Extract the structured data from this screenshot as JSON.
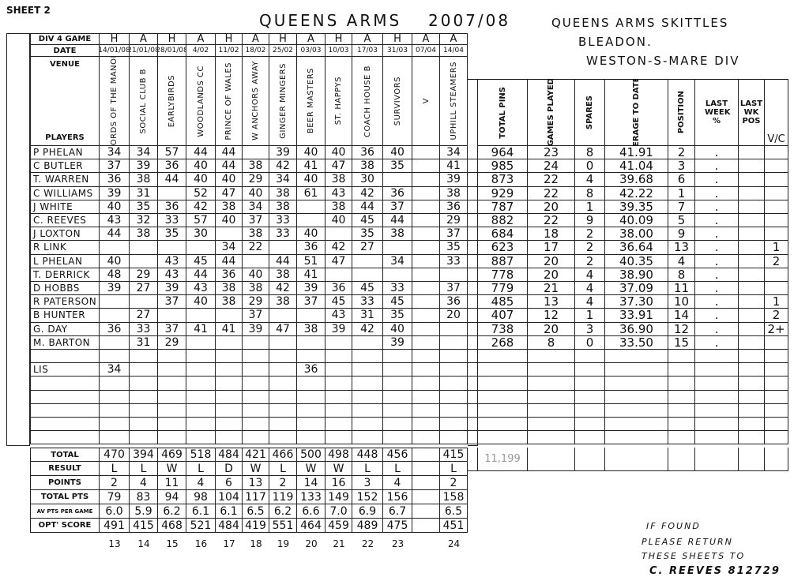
{
  "sheet_label": "SHEET 2",
  "title": "QUEENS ARMS",
  "season": "2007/08",
  "club": {
    "line1": "QUEENS ARMS SKITTLES",
    "line2": "BLEADON.",
    "line3": "WESTON-S-MARE DIV"
  },
  "left_header": {
    "div_label": "DIV 4 GAME",
    "date_label": "DATE",
    "venue_label": "VENUE",
    "players_label": "PLAYERS"
  },
  "matches": [
    {
      "ha": "H",
      "date": "14/01/08",
      "venue": "LORDS OF THE MANOR"
    },
    {
      "ha": "A",
      "date": "21/01/08",
      "venue": "SOCIAL CLUB B"
    },
    {
      "ha": "H",
      "date": "28/01/08",
      "venue": "EARLYBIRDS"
    },
    {
      "ha": "A",
      "date": "4/02",
      "venue": "WOODLANDS CC"
    },
    {
      "ha": "H",
      "date": "11/02",
      "venue": "PRINCE OF WALES"
    },
    {
      "ha": "A",
      "date": "18/02",
      "venue": "W ANCHORS AWAY"
    },
    {
      "ha": "H",
      "date": "25/02",
      "venue": "GINGER MINGERS"
    },
    {
      "ha": "A",
      "date": "03/03",
      "venue": "BEER MASTERS"
    },
    {
      "ha": "H",
      "date": "10/03",
      "venue": "ST. HAPPYS"
    },
    {
      "ha": "A",
      "date": "17/03",
      "venue": "COACH HOUSE B"
    },
    {
      "ha": "H",
      "date": "31/03",
      "venue": "SURVIVORS"
    },
    {
      "ha": "A",
      "date": "07/04",
      "venue": "V"
    },
    {
      "ha": "A",
      "date": "14/04",
      "venue": "UPHILL STEAMERS"
    }
  ],
  "stats_headers": {
    "total_pins": "TOTAL PINS",
    "games_played": "GAMES PLAYED",
    "spares": "SPARES",
    "average": "AVERAGE TO DATE %",
    "position": "POSITION",
    "last_week": "LAST WEEK %",
    "last_wk_pos": "LAST WK POS",
    "vc": "V/C"
  },
  "players": [
    {
      "name": "P PHELAN",
      "scores": [
        "34",
        "34",
        "57",
        "44",
        "44",
        "",
        "39",
        "40",
        "40",
        "36",
        "40",
        "",
        "34"
      ],
      "total_pins": "964",
      "games": "23",
      "spares": "8",
      "average": "41.91",
      "position": "2",
      "last_week": ".",
      "vc": ""
    },
    {
      "name": "C BUTLER",
      "scores": [
        "37",
        "39",
        "36",
        "40",
        "44",
        "38",
        "42",
        "41",
        "47",
        "38",
        "35",
        "",
        "41"
      ],
      "total_pins": "985",
      "games": "24",
      "spares": "0",
      "average": "41.04",
      "position": "3",
      "last_week": ".",
      "vc": ""
    },
    {
      "name": "T. WARREN",
      "scores": [
        "36",
        "38",
        "44",
        "40",
        "40",
        "29",
        "34",
        "40",
        "38",
        "30",
        "",
        "",
        "39"
      ],
      "total_pins": "873",
      "games": "22",
      "spares": "4",
      "average": "39.68",
      "position": "6",
      "last_week": ".",
      "vc": ""
    },
    {
      "name": "C WILLIAMS",
      "scores": [
        "39",
        "31",
        "",
        "52",
        "47",
        "40",
        "38",
        "61",
        "43",
        "42",
        "36",
        "",
        "38"
      ],
      "total_pins": "929",
      "games": "22",
      "spares": "8",
      "average": "42.22",
      "position": "1",
      "last_week": ".",
      "vc": ""
    },
    {
      "name": "J WHITE",
      "scores": [
        "40",
        "35",
        "36",
        "42",
        "38",
        "34",
        "38",
        "",
        "38",
        "44",
        "37",
        "",
        "36"
      ],
      "total_pins": "787",
      "games": "20",
      "spares": "1",
      "average": "39.35",
      "position": "7",
      "last_week": ".",
      "vc": ""
    },
    {
      "name": "C. REEVES",
      "scores": [
        "43",
        "32",
        "33",
        "57",
        "40",
        "37",
        "33",
        "",
        "40",
        "45",
        "44",
        "",
        "29"
      ],
      "total_pins": "882",
      "games": "22",
      "spares": "9",
      "average": "40.09",
      "position": "5",
      "last_week": ".",
      "vc": ""
    },
    {
      "name": "J LOXTON",
      "scores": [
        "44",
        "38",
        "35",
        "30",
        "",
        "38",
        "33",
        "40",
        "",
        "35",
        "38",
        "",
        "37"
      ],
      "total_pins": "684",
      "games": "18",
      "spares": "2",
      "average": "38.00",
      "position": "9",
      "last_week": ".",
      "vc": ""
    },
    {
      "name": "R LINK",
      "scores": [
        "",
        "",
        "",
        "",
        "34",
        "22",
        "",
        "36",
        "42",
        "27",
        "",
        "",
        "35"
      ],
      "total_pins": "623",
      "games": "17",
      "spares": "2",
      "average": "36.64",
      "position": "13",
      "last_week": ".",
      "vc": "1"
    },
    {
      "name": "L PHELAN",
      "scores": [
        "40",
        "",
        "43",
        "45",
        "44",
        "",
        "44",
        "51",
        "47",
        "",
        "34",
        "",
        "33"
      ],
      "total_pins": "887",
      "games": "20",
      "spares": "2",
      "average": "40.35",
      "position": "4",
      "last_week": ".",
      "vc": "2"
    },
    {
      "name": "T. DERRICK",
      "scores": [
        "48",
        "29",
        "43",
        "44",
        "36",
        "40",
        "38",
        "41",
        "",
        "",
        "",
        "",
        ""
      ],
      "total_pins": "778",
      "games": "20",
      "spares": "4",
      "average": "38.90",
      "position": "8",
      "last_week": ".",
      "vc": ""
    },
    {
      "name": "D HOBBS",
      "scores": [
        "39",
        "27",
        "39",
        "43",
        "38",
        "38",
        "42",
        "39",
        "36",
        "45",
        "33",
        "",
        "37"
      ],
      "total_pins": "779",
      "games": "21",
      "spares": "4",
      "average": "37.09",
      "position": "11",
      "last_week": ".",
      "vc": ""
    },
    {
      "name": "R PATERSON",
      "scores": [
        "",
        "",
        "37",
        "40",
        "38",
        "29",
        "38",
        "37",
        "45",
        "33",
        "45",
        "",
        "36"
      ],
      "total_pins": "485",
      "games": "13",
      "spares": "4",
      "average": "37.30",
      "position": "10",
      "last_week": ".",
      "vc": "1"
    },
    {
      "name": "B HUNTER",
      "scores": [
        "",
        "27",
        "",
        "",
        "",
        "37",
        "",
        "",
        "43",
        "31",
        "35",
        "",
        "20"
      ],
      "total_pins": "407",
      "games": "12",
      "spares": "1",
      "average": "33.91",
      "position": "14",
      "last_week": ".",
      "vc": "2"
    },
    {
      "name": "G. DAY",
      "scores": [
        "36",
        "33",
        "37",
        "41",
        "41",
        "39",
        "47",
        "38",
        "39",
        "42",
        "40",
        "",
        ""
      ],
      "total_pins": "738",
      "games": "20",
      "spares": "3",
      "average": "36.90",
      "position": "12",
      "last_week": ".",
      "vc": "2+"
    },
    {
      "name": "M. BARTON",
      "scores": [
        "",
        "31",
        "29",
        "",
        "",
        "",
        "",
        "",
        "",
        "",
        "39",
        "",
        ""
      ],
      "total_pins": "268",
      "games": "8",
      "spares": "0",
      "average": "33.50",
      "position": "15",
      "last_week": ".",
      "vc": ""
    }
  ],
  "extra_row": {
    "name": "LIS",
    "scores": [
      "34",
      "",
      "",
      "",
      "",
      "",
      "",
      "36",
      "",
      "",
      "",
      "",
      ""
    ]
  },
  "summary": [
    {
      "label": "TOTAL",
      "values": [
        "470",
        "394",
        "469",
        "518",
        "484",
        "421",
        "466",
        "500",
        "498",
        "448",
        "456",
        "",
        "415"
      ]
    },
    {
      "label": "RESULT",
      "values": [
        "L",
        "L",
        "W",
        "L",
        "D",
        "W",
        "L",
        "W",
        "W",
        "L",
        "L",
        "",
        "L"
      ]
    },
    {
      "label": "POINTS",
      "values": [
        "2",
        "4",
        "11",
        "4",
        "6",
        "13",
        "2",
        "14",
        "16",
        "3",
        "4",
        "",
        "2"
      ]
    },
    {
      "label": "TOTAL PTS",
      "values": [
        "79",
        "83",
        "94",
        "98",
        "104",
        "117",
        "119",
        "133",
        "149",
        "152",
        "156",
        "",
        "158"
      ]
    },
    {
      "label": "AV PTS PER GAME",
      "values": [
        "6.0",
        "5.9",
        "6.2",
        "6.1",
        "6.1",
        "6.5",
        "6.2",
        "6.6",
        "7.0",
        "6.9",
        "6.7",
        "",
        "6.5"
      ]
    },
    {
      "label": "OPT' SCORE",
      "values": [
        "491",
        "415",
        "468",
        "521",
        "484",
        "419",
        "551",
        "464",
        "459",
        "489",
        "475",
        "",
        "451"
      ]
    }
  ],
  "grand_total_pins": "11,199",
  "match_numbers": [
    "13",
    "14",
    "15",
    "16",
    "17",
    "18",
    "19",
    "20",
    "21",
    "22",
    "23",
    "",
    "24"
  ],
  "footer_note": {
    "line1": "IF FOUND",
    "line2": "PLEASE RETURN",
    "line3": "THESE SHEETS TO",
    "line4": "C. REEVES 812729"
  }
}
